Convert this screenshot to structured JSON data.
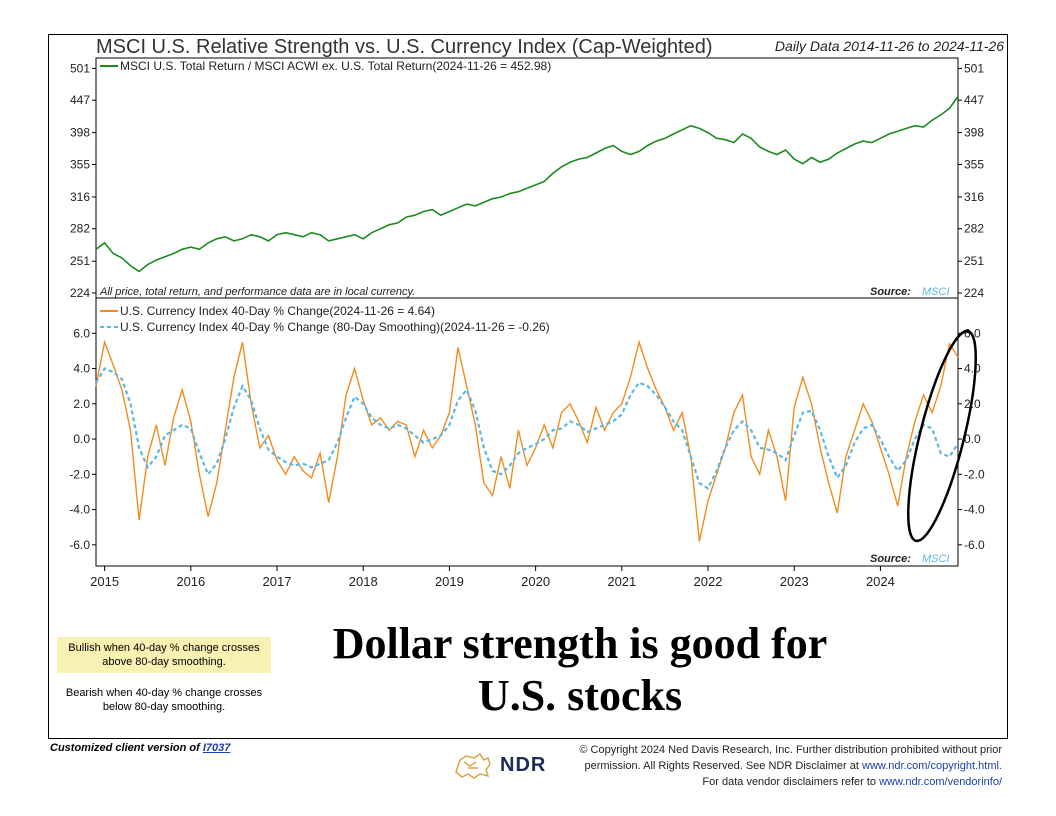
{
  "header": {
    "title": "MSCI U.S. Relative Strength vs. U.S. Currency Index (Cap-Weighted)",
    "date_range": "Daily Data 2014-11-26 to 2024-11-26"
  },
  "colors": {
    "relative_strength": "#1e8b1e",
    "currency_change": "#f28c1e",
    "smoothing": "#5ab8e6",
    "bullish_box": "#f7f1b2",
    "link": "#1a3fa8"
  },
  "chart_data": [
    {
      "type": "line",
      "scale": "log",
      "legend": "MSCI U.S. Total Return / MSCI ACWI ex. U.S. Total Return(2024-11-26 = 452.98)",
      "legend_position": "top-left",
      "note": "All price, total return, and performance data are in local currency.",
      "source_label": "Source:",
      "source_value": "MSCI",
      "yticks": [
        224,
        251,
        282,
        316,
        355,
        398,
        447,
        501
      ],
      "ytick_labels": [
        "224",
        "251",
        "282",
        "316",
        "355",
        "398",
        "447",
        "501"
      ],
      "ylim": [
        220,
        520
      ],
      "xlim": [
        2014.9,
        2024.9
      ],
      "series": [
        {
          "name": "MSCI U.S. Total Return / MSCI ACWI ex. U.S. Total Return",
          "x": [
            2014.9,
            2015.0,
            2015.1,
            2015.2,
            2015.3,
            2015.4,
            2015.5,
            2015.6,
            2015.7,
            2015.8,
            2015.9,
            2016.0,
            2016.1,
            2016.2,
            2016.3,
            2016.4,
            2016.5,
            2016.6,
            2016.7,
            2016.8,
            2016.9,
            2017.0,
            2017.1,
            2017.2,
            2017.3,
            2017.4,
            2017.5,
            2017.6,
            2017.7,
            2017.8,
            2017.9,
            2018.0,
            2018.1,
            2018.2,
            2018.3,
            2018.4,
            2018.5,
            2018.6,
            2018.7,
            2018.8,
            2018.9,
            2019.0,
            2019.1,
            2019.2,
            2019.3,
            2019.4,
            2019.5,
            2019.6,
            2019.7,
            2019.8,
            2019.9,
            2020.0,
            2020.1,
            2020.2,
            2020.3,
            2020.4,
            2020.5,
            2020.6,
            2020.7,
            2020.8,
            2020.9,
            2021.0,
            2021.1,
            2021.2,
            2021.3,
            2021.4,
            2021.5,
            2021.6,
            2021.7,
            2021.8,
            2021.9,
            2022.0,
            2022.1,
            2022.2,
            2022.3,
            2022.4,
            2022.5,
            2022.6,
            2022.7,
            2022.8,
            2022.9,
            2023.0,
            2023.1,
            2023.2,
            2023.3,
            2023.4,
            2023.5,
            2023.6,
            2023.7,
            2023.8,
            2023.9,
            2024.0,
            2024.1,
            2024.2,
            2024.3,
            2024.4,
            2024.5,
            2024.6,
            2024.7,
            2024.8,
            2024.9
          ],
          "y": [
            262,
            268,
            258,
            254,
            247,
            242,
            248,
            252,
            255,
            258,
            262,
            264,
            262,
            268,
            272,
            274,
            270,
            272,
            276,
            274,
            270,
            276,
            278,
            276,
            274,
            278,
            276,
            270,
            272,
            274,
            276,
            272,
            278,
            282,
            286,
            288,
            294,
            296,
            300,
            302,
            296,
            300,
            304,
            308,
            306,
            310,
            314,
            316,
            320,
            322,
            326,
            330,
            334,
            344,
            352,
            358,
            362,
            364,
            370,
            376,
            380,
            372,
            368,
            372,
            380,
            386,
            390,
            396,
            402,
            408,
            404,
            398,
            390,
            388,
            384,
            396,
            390,
            378,
            372,
            368,
            374,
            362,
            356,
            364,
            358,
            362,
            370,
            376,
            382,
            386,
            384,
            390,
            396,
            400,
            404,
            408,
            406,
            416,
            424,
            434,
            452.98
          ]
        }
      ]
    },
    {
      "type": "line",
      "legend_position": "top-left",
      "source_label": "Source:",
      "source_value": "MSCI",
      "yticks": [
        -6,
        -4,
        -2,
        0,
        2,
        4,
        6
      ],
      "ytick_labels": [
        "-6.0",
        "-4.0",
        "-2.0",
        "0.0",
        "2.0",
        "4.0",
        "6.0"
      ],
      "ylim": [
        -7.2,
        8
      ],
      "xlim": [
        2014.9,
        2024.9
      ],
      "xtick_values": [
        2015,
        2016,
        2017,
        2018,
        2019,
        2020,
        2021,
        2022,
        2023,
        2024
      ],
      "xtick_labels": [
        "2015",
        "2016",
        "2017",
        "2018",
        "2019",
        "2020",
        "2021",
        "2022",
        "2023",
        "2024"
      ],
      "series": [
        {
          "name": "U.S. Currency Index 40-Day % Change(2024-11-26 = 4.64)",
          "x": [
            2014.9,
            2015.0,
            2015.1,
            2015.2,
            2015.3,
            2015.4,
            2015.5,
            2015.6,
            2015.7,
            2015.8,
            2015.9,
            2016.0,
            2016.1,
            2016.2,
            2016.3,
            2016.4,
            2016.5,
            2016.6,
            2016.7,
            2016.8,
            2016.9,
            2017.0,
            2017.1,
            2017.2,
            2017.3,
            2017.4,
            2017.5,
            2017.6,
            2017.7,
            2017.8,
            2017.9,
            2018.0,
            2018.1,
            2018.2,
            2018.3,
            2018.4,
            2018.5,
            2018.6,
            2018.7,
            2018.8,
            2018.9,
            2019.0,
            2019.1,
            2019.2,
            2019.3,
            2019.4,
            2019.5,
            2019.6,
            2019.7,
            2019.8,
            2019.9,
            2020.0,
            2020.1,
            2020.2,
            2020.3,
            2020.4,
            2020.5,
            2020.6,
            2020.7,
            2020.8,
            2020.9,
            2021.0,
            2021.1,
            2021.2,
            2021.3,
            2021.4,
            2021.5,
            2021.6,
            2021.7,
            2021.8,
            2021.9,
            2022.0,
            2022.1,
            2022.2,
            2022.3,
            2022.4,
            2022.5,
            2022.6,
            2022.7,
            2022.8,
            2022.9,
            2023.0,
            2023.1,
            2023.2,
            2023.3,
            2023.4,
            2023.5,
            2023.6,
            2023.7,
            2023.8,
            2023.9,
            2024.0,
            2024.1,
            2024.2,
            2024.3,
            2024.4,
            2024.5,
            2024.6,
            2024.7,
            2024.8,
            2024.9
          ],
          "y": [
            3.0,
            5.5,
            4.2,
            2.8,
            0.5,
            -4.6,
            -1.0,
            0.8,
            -1.5,
            1.2,
            2.8,
            1.0,
            -2.0,
            -4.4,
            -2.5,
            0.5,
            3.5,
            5.5,
            2.0,
            -0.5,
            0.2,
            -1.2,
            -2.0,
            -1.0,
            -1.8,
            -2.2,
            -0.8,
            -3.6,
            -1.0,
            2.5,
            4.0,
            2.2,
            0.8,
            1.2,
            0.5,
            1.0,
            0.8,
            -1.0,
            0.5,
            -0.5,
            0.2,
            1.5,
            5.2,
            3.0,
            0.8,
            -2.5,
            -3.2,
            -1.0,
            -2.8,
            0.5,
            -1.5,
            -0.5,
            0.8,
            -0.5,
            1.5,
            2.0,
            1.0,
            -0.2,
            1.8,
            0.5,
            1.5,
            2.0,
            3.5,
            5.5,
            4.0,
            2.8,
            1.8,
            0.5,
            1.5,
            -1.0,
            -5.8,
            -3.5,
            -2.0,
            -0.5,
            1.5,
            2.5,
            -1.0,
            -2.0,
            0.5,
            -1.0,
            -3.5,
            1.8,
            3.5,
            2.0,
            -0.5,
            -2.5,
            -4.2,
            -1.0,
            0.5,
            2.0,
            1.0,
            -0.5,
            -2.0,
            -3.8,
            -1.0,
            1.0,
            2.5,
            1.5,
            3.0,
            5.4,
            4.64
          ]
        },
        {
          "name": "U.S. Currency Index 40-Day % Change (80-Day Smoothing)(2024-11-26 = -0.26)",
          "x": [
            2014.9,
            2015.0,
            2015.1,
            2015.2,
            2015.3,
            2015.4,
            2015.5,
            2015.6,
            2015.7,
            2015.8,
            2015.9,
            2016.0,
            2016.1,
            2016.2,
            2016.3,
            2016.4,
            2016.5,
            2016.6,
            2016.7,
            2016.8,
            2016.9,
            2017.0,
            2017.1,
            2017.2,
            2017.3,
            2017.4,
            2017.5,
            2017.6,
            2017.7,
            2017.8,
            2017.9,
            2018.0,
            2018.1,
            2018.2,
            2018.3,
            2018.4,
            2018.5,
            2018.6,
            2018.7,
            2018.8,
            2018.9,
            2019.0,
            2019.1,
            2019.2,
            2019.3,
            2019.4,
            2019.5,
            2019.6,
            2019.7,
            2019.8,
            2019.9,
            2020.0,
            2020.1,
            2020.2,
            2020.3,
            2020.4,
            2020.5,
            2020.6,
            2020.7,
            2020.8,
            2020.9,
            2021.0,
            2021.1,
            2021.2,
            2021.3,
            2021.4,
            2021.5,
            2021.6,
            2021.7,
            2021.8,
            2021.9,
            2022.0,
            2022.1,
            2022.2,
            2022.3,
            2022.4,
            2022.5,
            2022.6,
            2022.7,
            2022.8,
            2022.9,
            2023.0,
            2023.1,
            2023.2,
            2023.3,
            2023.4,
            2023.5,
            2023.6,
            2023.7,
            2023.8,
            2023.9,
            2024.0,
            2024.1,
            2024.2,
            2024.3,
            2024.4,
            2024.5,
            2024.6,
            2024.7,
            2024.8,
            2024.9
          ],
          "y": [
            3.2,
            4.0,
            3.8,
            3.4,
            2.0,
            -0.5,
            -1.6,
            -1.0,
            0.2,
            0.5,
            0.8,
            0.6,
            -0.8,
            -2.0,
            -1.4,
            0.0,
            1.8,
            3.0,
            2.2,
            0.6,
            -0.6,
            -1.0,
            -1.3,
            -1.5,
            -1.4,
            -1.6,
            -1.4,
            -1.2,
            -0.2,
            1.2,
            2.4,
            2.0,
            1.2,
            0.8,
            0.6,
            0.8,
            0.6,
            0.2,
            -0.2,
            0.0,
            0.2,
            0.8,
            2.2,
            2.8,
            1.6,
            -0.5,
            -1.8,
            -2.0,
            -1.5,
            -0.8,
            -0.5,
            -0.3,
            0.0,
            0.5,
            0.6,
            1.0,
            0.8,
            0.4,
            0.6,
            0.8,
            1.0,
            1.4,
            2.5,
            3.2,
            3.0,
            2.5,
            1.8,
            1.0,
            0.5,
            -1.0,
            -2.5,
            -2.8,
            -1.8,
            -0.5,
            0.5,
            1.0,
            0.5,
            -0.5,
            -0.6,
            -0.8,
            -1.2,
            0.2,
            1.5,
            1.6,
            0.5,
            -1.0,
            -2.2,
            -1.5,
            -0.2,
            0.6,
            0.8,
            0.0,
            -1.0,
            -1.8,
            -1.2,
            0.0,
            0.8,
            0.6,
            -0.8,
            -1.0,
            -0.26
          ]
        }
      ]
    }
  ],
  "callouts": {
    "bullish": "Bullish when 40-day % change crosses above 80-day smoothing.",
    "bearish": "Bearish when 40-day % change crosses below 80-day smoothing."
  },
  "headline": {
    "line1": "Dollar strength is good for",
    "line2": "U.S. stocks"
  },
  "footer": {
    "client_prefix": "Customized client version of ",
    "client_link": "I7037",
    "logo_text": "NDR",
    "copyright_1": "© Copyright 2024 Ned Davis Research, Inc. Further distribution prohibited without prior",
    "copyright_2a": "permission. All Rights Reserved. See NDR Disclaimer at ",
    "copyright_2b": "www.ndr.com/copyright.html.",
    "copyright_3a": "For data vendor disclaimers refer to ",
    "copyright_3b": "www.ndr.com/vendorinfo/"
  }
}
